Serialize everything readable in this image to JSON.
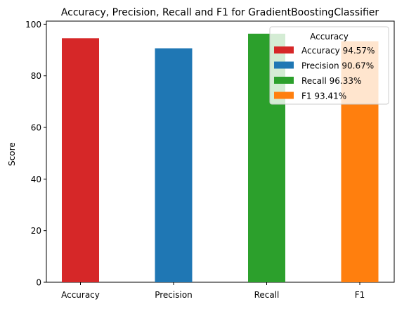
{
  "chart_data": {
    "type": "bar",
    "title": "Accuracy, Precision, Recall and F1 for GradientBoostingClassifier",
    "xlabel": "",
    "ylabel": "Score",
    "categories": [
      "Accuracy",
      "Precision",
      "Recall",
      "F1"
    ],
    "values": [
      94.57,
      90.67,
      96.33,
      93.41
    ],
    "colors": [
      "#d62728",
      "#1f77b4",
      "#2ca02c",
      "#ff7f0e"
    ],
    "ylim": [
      0,
      100
    ],
    "yticks": [
      0,
      20,
      40,
      60,
      80,
      100
    ],
    "grid": false,
    "legend": {
      "title": "Accuracy",
      "placement": "top-right",
      "entries": [
        "Accuracy 94.57%",
        "Precision 90.67%",
        "Recall 96.33%",
        "F1 93.41%"
      ]
    }
  }
}
